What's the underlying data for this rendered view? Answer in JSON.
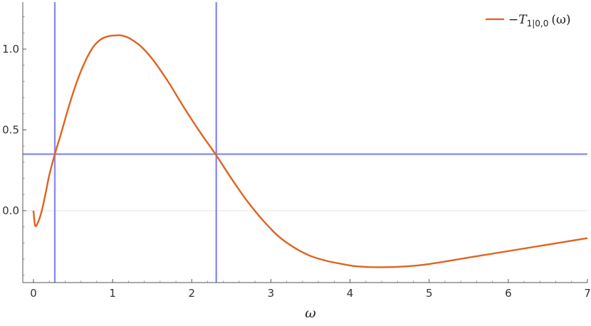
{
  "chart_data": {
    "type": "line",
    "title": "",
    "xlabel": "ω",
    "ylabel": "",
    "xlim": [
      0,
      7
    ],
    "ylim": [
      -0.45,
      1.25
    ],
    "xticks": [
      0,
      1,
      2,
      3,
      4,
      5,
      6,
      7
    ],
    "xtick_labels": [
      "0",
      "1",
      "2",
      "3",
      "4",
      "5",
      "6",
      "7"
    ],
    "yticks": [
      0.0,
      0.5,
      1.0
    ],
    "ytick_labels": [
      "0.0",
      "0.5",
      "1.0"
    ],
    "grid": false,
    "legend": {
      "placement": "top-right",
      "entries": [
        {
          "prefix": "−T",
          "subscript": "1|0,0",
          "suffix": "(ω)",
          "color": "#e1621e"
        }
      ]
    },
    "series": [
      {
        "color": "#e1621e",
        "x": [
          0,
          0.02,
          0.05,
          0.1,
          0.15,
          0.2,
          0.27,
          0.35,
          0.45,
          0.55,
          0.65,
          0.75,
          0.85,
          0.95,
          1.05,
          1.1,
          1.2,
          1.35,
          1.5,
          1.7,
          1.9,
          2.1,
          2.3,
          2.5,
          2.7,
          2.9,
          3.1,
          3.3,
          3.5,
          3.7,
          3.9,
          4.1,
          4.4,
          4.7,
          5.0,
          5.5,
          6.0,
          6.5,
          7.0
        ],
        "y": [
          0.0,
          -0.09,
          -0.08,
          -0.01,
          0.1,
          0.22,
          0.35,
          0.48,
          0.65,
          0.8,
          0.92,
          1.01,
          1.06,
          1.08,
          1.085,
          1.085,
          1.07,
          1.02,
          0.94,
          0.8,
          0.64,
          0.49,
          0.35,
          0.2,
          0.06,
          -0.06,
          -0.16,
          -0.23,
          -0.28,
          -0.31,
          -0.33,
          -0.345,
          -0.35,
          -0.345,
          -0.33,
          -0.29,
          -0.25,
          -0.21,
          -0.17
        ]
      }
    ],
    "reference_lines": {
      "color": "#8a8ff0",
      "vertical_x": [
        0.27,
        2.31
      ],
      "horizontal_y": [
        0.35
      ]
    },
    "zero_line": 0
  }
}
